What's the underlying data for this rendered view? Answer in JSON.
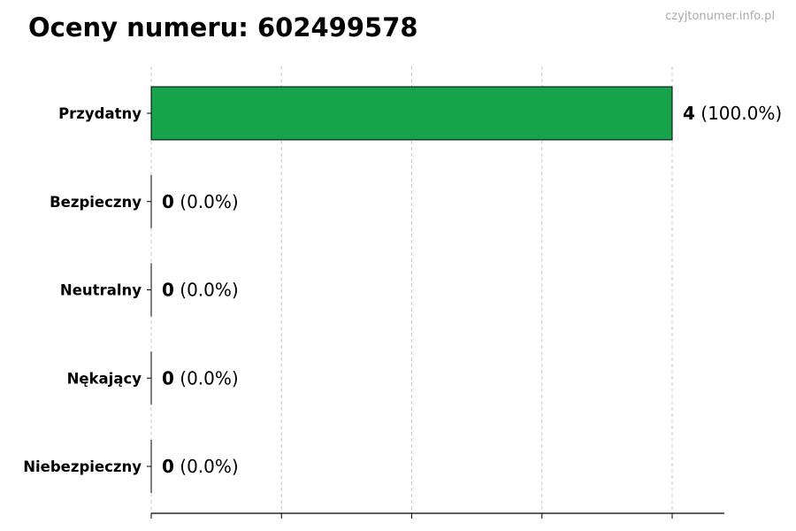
{
  "watermark": "czyjtonumer.info.pl",
  "chart_data": {
    "type": "bar",
    "orientation": "horizontal",
    "title": "Oceny numeru: 602499578",
    "categories": [
      "Przydatny",
      "Bezpieczny",
      "Neutralny",
      "Nękający",
      "Niebezpieczny"
    ],
    "values": [
      4,
      0,
      0,
      0,
      0
    ],
    "percents": [
      100.0,
      0.0,
      0.0,
      0.0,
      0.0
    ],
    "xlim": [
      0,
      4.4
    ],
    "xticks": [
      0,
      1,
      2,
      3,
      4
    ],
    "xtick_labels_shown": false,
    "grid": "vertical dashed",
    "bar_color": "#16a34a",
    "edge_color": "#000000"
  }
}
